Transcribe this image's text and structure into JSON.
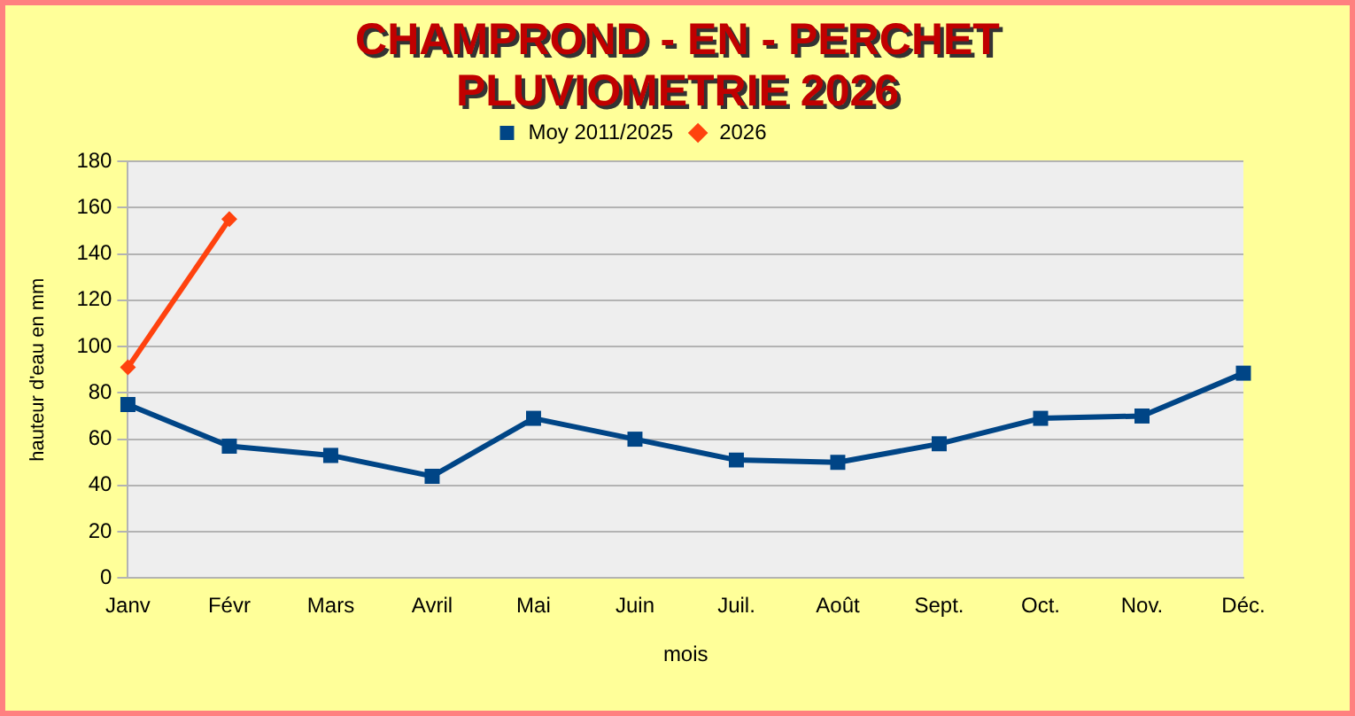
{
  "chart_data": {
    "type": "line",
    "title": "CHAMPROND - EN - PERCHET\nPLUVIOMETRIE 2026",
    "xlabel": "mois",
    "ylabel": "hauteur d'eau en mm",
    "categories": [
      "Janv",
      "Févr",
      "Mars",
      "Avril",
      "Mai",
      "Juin",
      "Juil.",
      "Août",
      "Sept.",
      "Oct.",
      "Nov.",
      "Déc."
    ],
    "series": [
      {
        "name": "Moy 2011/2025",
        "color": "#004586",
        "marker": "square",
        "values": [
          75,
          57,
          53,
          44,
          69,
          60,
          51,
          50,
          58,
          69,
          70,
          88.5
        ]
      },
      {
        "name": "2026",
        "color": "#ff420e",
        "marker": "diamond",
        "values": [
          91,
          155,
          null,
          null,
          null,
          null,
          null,
          null,
          null,
          null,
          null,
          null
        ]
      }
    ],
    "ylim": [
      0,
      180
    ],
    "yticks": [
      0,
      20,
      40,
      60,
      80,
      100,
      120,
      140,
      160,
      180
    ],
    "grid": "y",
    "legend": "top"
  }
}
